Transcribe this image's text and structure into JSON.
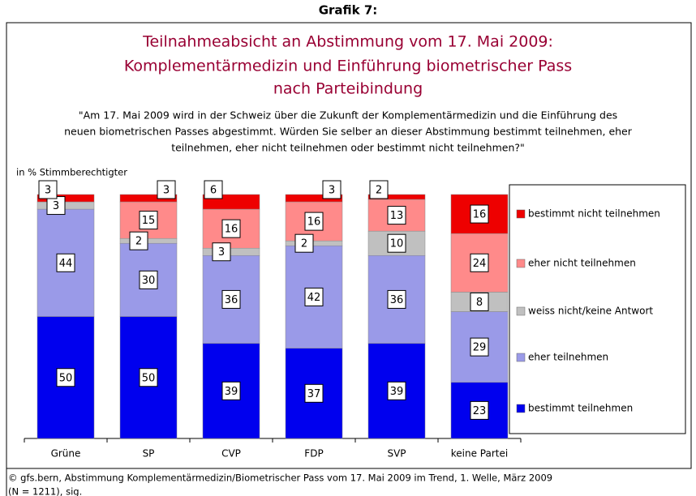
{
  "chart_data": {
    "type": "stacked_bar",
    "heading": "Grafik 7:",
    "title": [
      "Teilnahmeabsicht an Abstimmung vom 17. Mai 2009:",
      "Komplementärmedizin und Einführung biometrischer Pass",
      "nach Parteibindung"
    ],
    "subtitle": [
      "\"Am 17. Mai 2009 wird in der Schweiz über die Zukunft der Komplementärmedizin und die Einführung des",
      "neuen biometrischen Passes abgestimmt. Würden Sie selber an dieser Abstimmung bestimmt teilnehmen, eher",
      "teilnehmen, eher nicht teilnehmen oder bestimmt nicht teilnehmen?\""
    ],
    "y_label": "in % Stimmberechtigter",
    "categories": [
      "Grüne",
      "SP",
      "CVP",
      "FDP",
      "SVP",
      "keine Partei"
    ],
    "series": [
      {
        "name": "bestimmt teilnehmen",
        "color": "#0000ee",
        "values": [
          50,
          50,
          39,
          37,
          39,
          23
        ]
      },
      {
        "name": "eher teilnehmen",
        "color": "#9a9ae8",
        "values": [
          44,
          30,
          36,
          42,
          36,
          29
        ]
      },
      {
        "name": "weiss nicht/keine Antwort",
        "color": "#c0c0c0",
        "values": [
          3,
          2,
          3,
          2,
          10,
          8
        ]
      },
      {
        "name": "eher nicht teilnehmen",
        "color": "#ff8a8a",
        "values": [
          null,
          15,
          16,
          16,
          13,
          24
        ]
      },
      {
        "name": "bestimmt nicht teilnehmen",
        "color": "#ee0000",
        "values": [
          3,
          3,
          6,
          3,
          2,
          16
        ]
      }
    ],
    "ylim": [
      0,
      100
    ],
    "footer": [
      "© gfs.bern, Abstimmung Komplementärmedizin/Biometrischer Pass vom 17. Mai 2009 im Trend, 1. Welle, März 2009",
      "(N = 1211), sig."
    ]
  }
}
